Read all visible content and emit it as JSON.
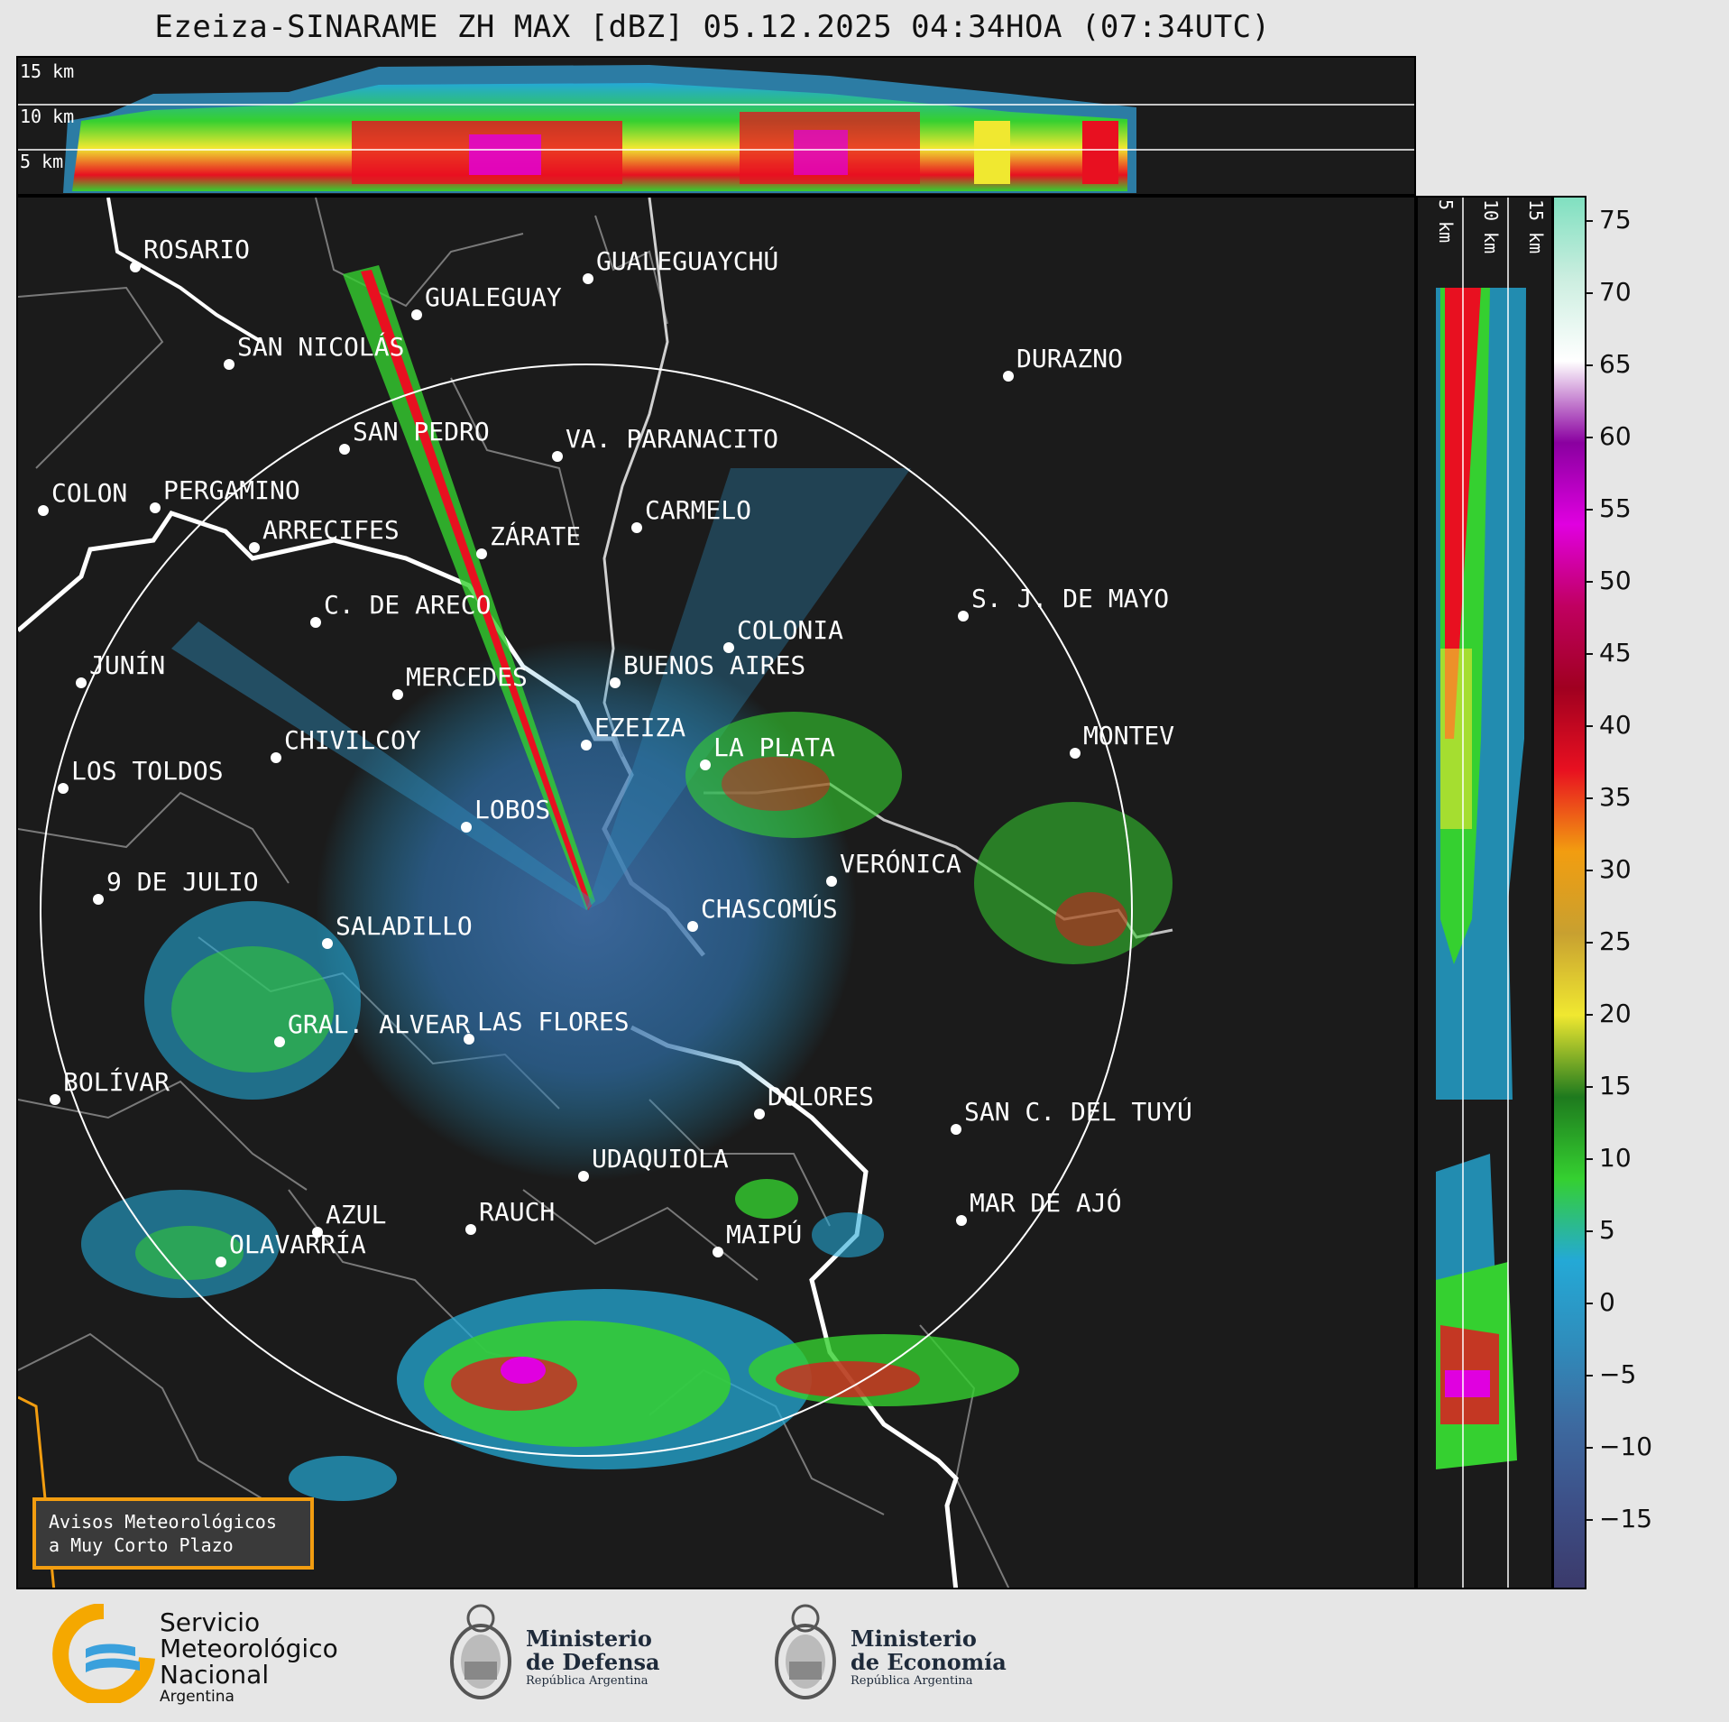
{
  "title": "Ezeiza-SINARAME ZH MAX [dBZ] 05.12.2025 04:34HOA (07:34UTC)",
  "top_panel": {
    "altitude_labels": [
      "15 km",
      "10 km",
      "5 km"
    ]
  },
  "side_panel": {
    "altitude_labels": [
      "5 km",
      "10 km",
      "15 km"
    ]
  },
  "colorbar": {
    "unit": "dBZ",
    "ticks": [
      "75",
      "70",
      "65",
      "60",
      "55",
      "50",
      "45",
      "40",
      "35",
      "30",
      "25",
      "20",
      "15",
      "10",
      "5",
      "0",
      "−5",
      "−10",
      "−15"
    ],
    "color_stops": [
      "#3b3a6b",
      "#3d4f87",
      "#3d6aa0",
      "#2f8dbc",
      "#24a9d6",
      "#35d030",
      "#1e7a1e",
      "#f0e830",
      "#c8a030",
      "#f29d10",
      "#e81020",
      "#a00020",
      "#c00060",
      "#e000e0",
      "#8a00a0",
      "#ffffff",
      "#cceee0",
      "#80e0c0"
    ]
  },
  "cities": [
    {
      "name": "ROSARIO"
    },
    {
      "name": "GUALEGUAYCHÚ"
    },
    {
      "name": "GUALEGUAY"
    },
    {
      "name": "SAN NICOLÁS"
    },
    {
      "name": "DURAZNO"
    },
    {
      "name": "SAN PEDRO"
    },
    {
      "name": "VA. PARANACITO"
    },
    {
      "name": "COLON"
    },
    {
      "name": "PERGAMINO"
    },
    {
      "name": "CARMELO"
    },
    {
      "name": "ARRECIFES"
    },
    {
      "name": "ZÁRATE"
    },
    {
      "name": "C. DE ARECO"
    },
    {
      "name": "S. J. DE MAYO"
    },
    {
      "name": "COLONIA"
    },
    {
      "name": "JUNÍN"
    },
    {
      "name": "BUENOS AIRES"
    },
    {
      "name": "MERCEDES"
    },
    {
      "name": "EZEIZA"
    },
    {
      "name": "CHIVILCOY"
    },
    {
      "name": "MONTEV"
    },
    {
      "name": "LA PLATA"
    },
    {
      "name": "LOS TOLDOS"
    },
    {
      "name": "LOBOS"
    },
    {
      "name": "VERÓNICA"
    },
    {
      "name": "9 DE JULIO"
    },
    {
      "name": "CHASCOMÚS"
    },
    {
      "name": "SALADILLO"
    },
    {
      "name": "GRAL. ALVEAR"
    },
    {
      "name": "LAS FLORES"
    },
    {
      "name": "BOLÍVAR"
    },
    {
      "name": "DOLORES"
    },
    {
      "name": "SAN C. DEL TUYÚ"
    },
    {
      "name": "UDAQUIOLA"
    },
    {
      "name": "MAR DE AJÓ"
    },
    {
      "name": "AZUL"
    },
    {
      "name": "RAUCH"
    },
    {
      "name": "OLAVARRÍA"
    },
    {
      "name": "MAIPÚ"
    }
  ],
  "warning_box": {
    "line1": "Avisos Meteorológicos",
    "line2": "a Muy Corto Plazo"
  },
  "footer": {
    "smn": {
      "line1": "Servicio",
      "line2": "Meteorológico",
      "line3": "Nacional",
      "line4": "Argentina"
    },
    "defensa": {
      "line1": "Ministerio",
      "line2": "de Defensa",
      "line3": "República Argentina"
    },
    "economia": {
      "line1": "Ministerio",
      "line2": "de Economía",
      "line3": "República Argentina"
    }
  }
}
